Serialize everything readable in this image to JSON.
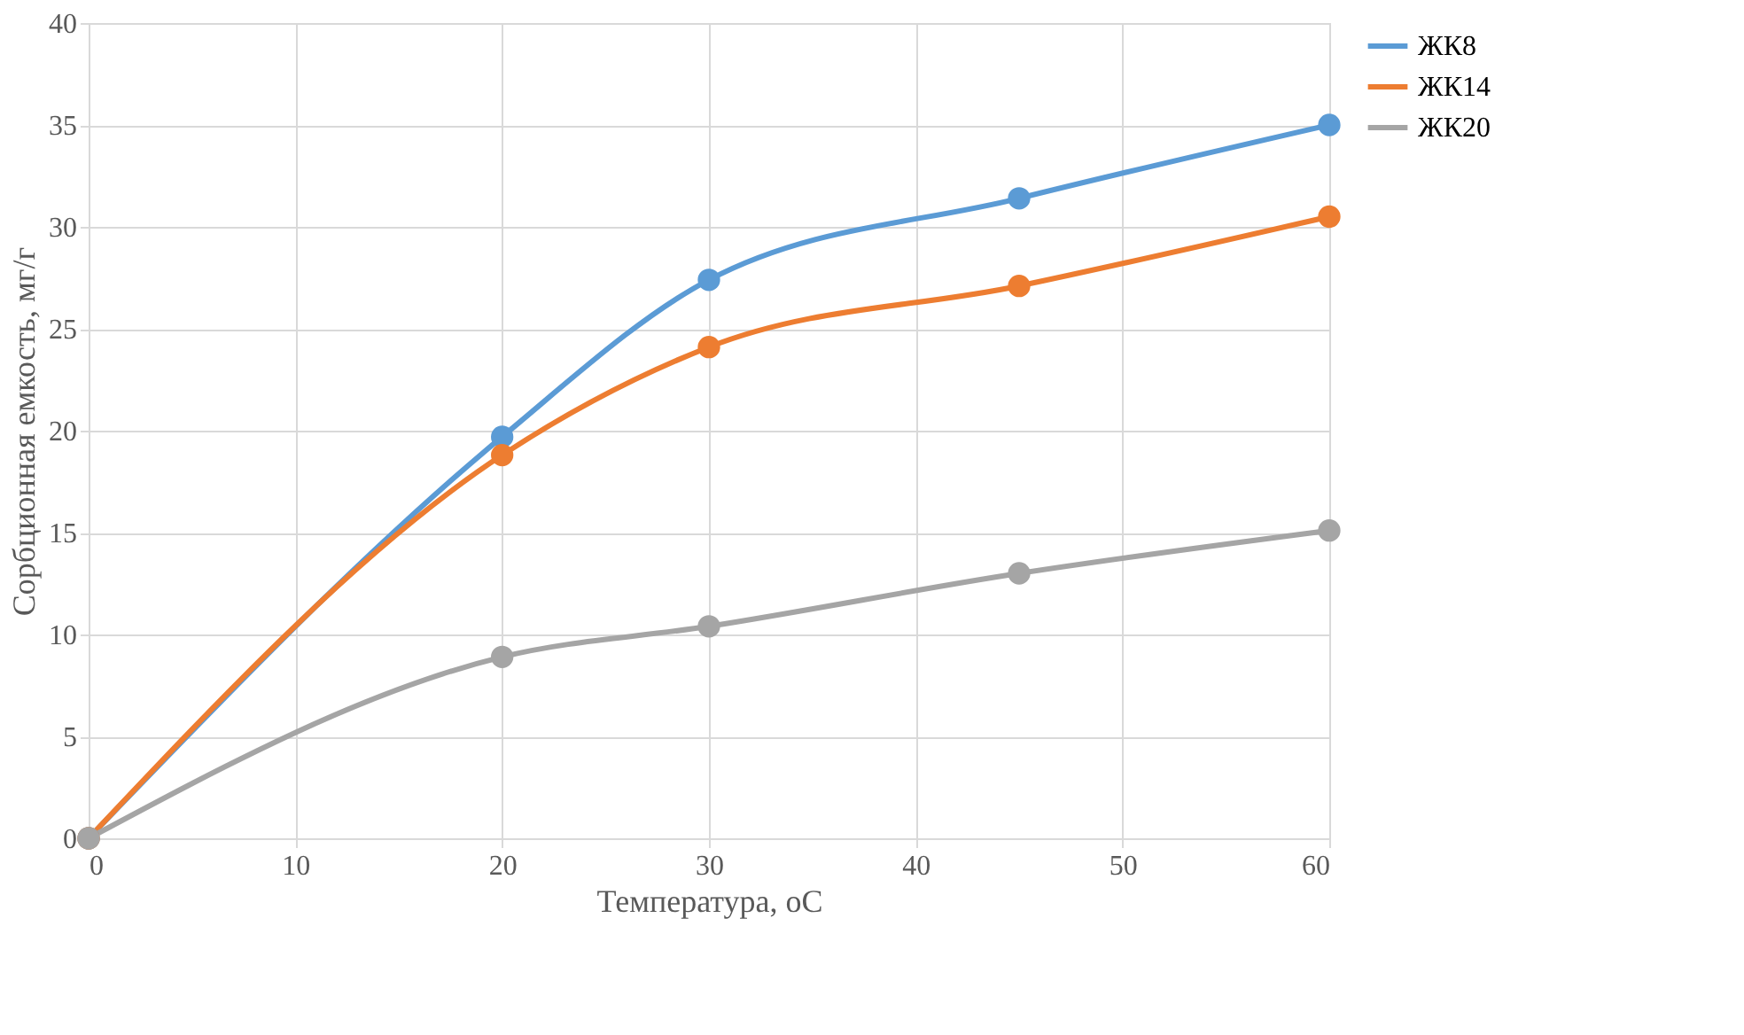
{
  "chart_data": {
    "type": "line",
    "xlabel": "Температура,  oC",
    "ylabel": "Сорбционная емкость, мг/г",
    "x": [
      0,
      20,
      30,
      45,
      60
    ],
    "series": [
      {
        "name": "ЖК8",
        "color": "#5b9bd5",
        "values": [
          0,
          19.7,
          27.4,
          31.4,
          35.0
        ]
      },
      {
        "name": "ЖК14",
        "color": "#ed7d31",
        "values": [
          0,
          18.8,
          24.1,
          27.1,
          30.5
        ]
      },
      {
        "name": "ЖК20",
        "color": "#a5a5a5",
        "values": [
          0,
          8.9,
          10.4,
          13.0,
          15.1
        ]
      }
    ],
    "xlim": [
      0,
      60
    ],
    "xticks": [
      0,
      10,
      20,
      30,
      40,
      50,
      60
    ],
    "ylim": [
      0,
      40
    ],
    "yticks": [
      0,
      5,
      10,
      15,
      20,
      25,
      30,
      35,
      40
    ],
    "grid": true,
    "legend": "right",
    "marker": "circle",
    "line_style": "solid"
  }
}
